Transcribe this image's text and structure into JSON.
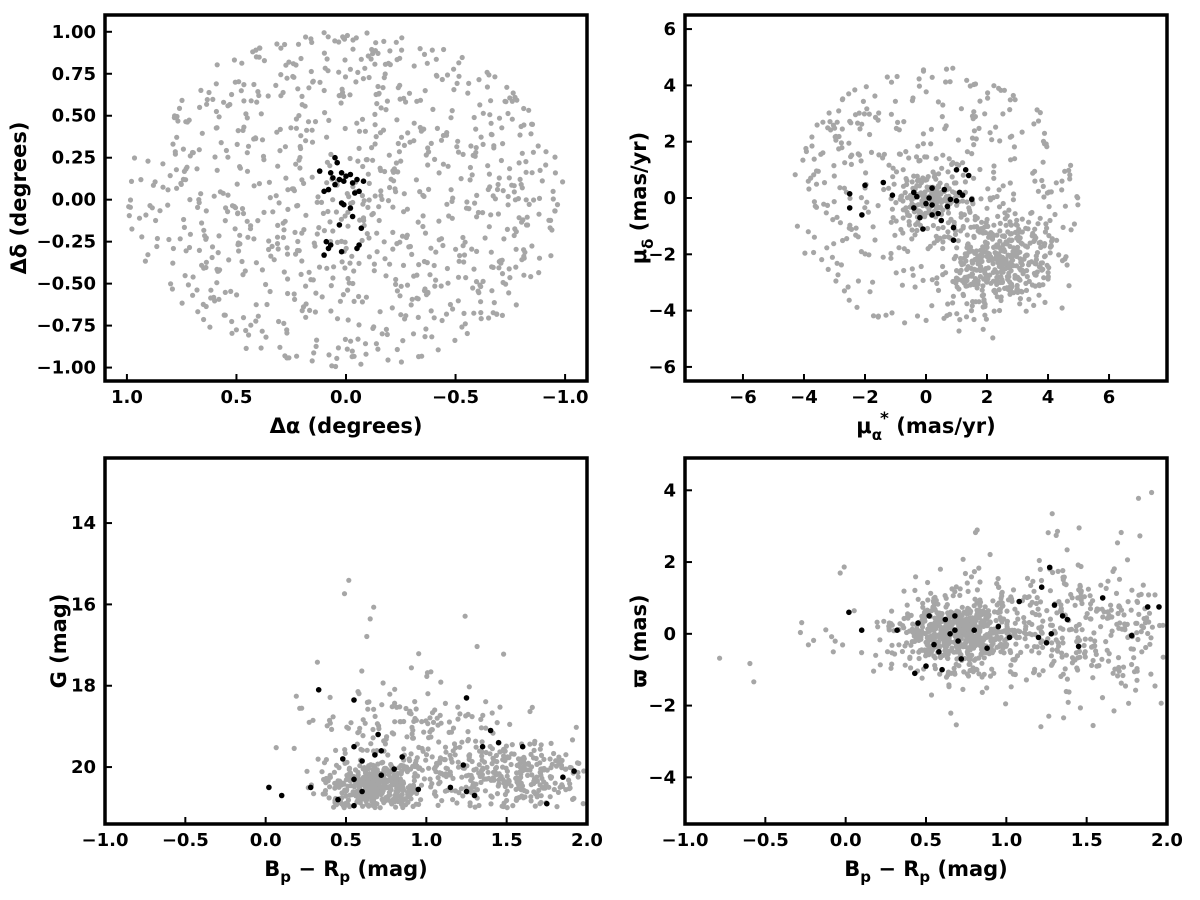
{
  "colors": {
    "background_stars": "#a6a6a6",
    "members": "#000000",
    "frame": "#000000"
  },
  "chart_data": [
    {
      "type": "scatter",
      "id": "sky",
      "xlabel": "Δα (degrees)",
      "ylabel": "Δδ (degrees)",
      "xlim": [
        1.1,
        -1.1
      ],
      "ylim": [
        -1.08,
        1.1
      ],
      "x_inverted": true,
      "xticks": [
        1.0,
        0.5,
        0.0,
        -0.5,
        -1.0
      ],
      "xtick_labels": [
        "1.0",
        "0.5",
        "0.0",
        "−0.5",
        "−1.0"
      ],
      "yticks": [
        1.0,
        0.75,
        0.5,
        0.25,
        0.0,
        -0.25,
        -0.5,
        -0.75,
        -1.0
      ],
      "ytick_labels": [
        "1.00",
        "0.75",
        "0.50",
        "0.25",
        "0.00",
        "−0.25",
        "−0.50",
        "−0.75",
        "−1.00"
      ],
      "grid": false,
      "series": [
        {
          "color": "#a6a6a6",
          "marker": "dot",
          "distribution": {
            "shape": "uniform-disk",
            "center": [
              0,
              0
            ],
            "radius": 1.0,
            "count": 900
          },
          "note": "field stars, uniform within 1 degree radius"
        },
        {
          "color": "#000000",
          "marker": "dot",
          "points": [
            [
              0.05,
              0.25
            ],
            [
              0.04,
              0.22
            ],
            [
              0.02,
              0.16
            ],
            [
              0.0,
              0.14
            ],
            [
              -0.02,
              0.15
            ],
            [
              0.03,
              0.12
            ],
            [
              0.06,
              0.13
            ],
            [
              -0.05,
              0.12
            ],
            [
              -0.03,
              0.1
            ],
            [
              0.01,
              0.11
            ],
            [
              0.07,
              0.16
            ],
            [
              0.1,
              0.05
            ],
            [
              0.08,
              0.06
            ],
            [
              0.05,
              0.09
            ],
            [
              -0.08,
              0.11
            ],
            [
              -0.06,
              0.05
            ],
            [
              -0.04,
              0.04
            ],
            [
              0.12,
              0.17
            ],
            [
              0.01,
              -0.03
            ],
            [
              0.02,
              -0.02
            ],
            [
              -0.02,
              -0.05
            ],
            [
              -0.03,
              -0.1
            ],
            [
              0.03,
              -0.15
            ],
            [
              -0.07,
              -0.17
            ],
            [
              0.07,
              -0.27
            ],
            [
              0.09,
              -0.25
            ],
            [
              0.1,
              -0.33
            ],
            [
              0.02,
              -0.31
            ],
            [
              -0.05,
              -0.29
            ],
            [
              -0.06,
              -0.27
            ],
            [
              0.08,
              -0.29
            ]
          ]
        }
      ]
    },
    {
      "type": "scatter",
      "id": "proper-motion",
      "xlabel_main": "μ",
      "xlabel_sub": "α",
      "xlabel_sup": "*",
      "xlabel_unit": " (mas/yr)",
      "ylabel_main": "μ",
      "ylabel_sub": "δ",
      "ylabel_unit": " (mas/yr)",
      "xlim": [
        -7.9,
        7.9
      ],
      "ylim": [
        -6.5,
        6.5
      ],
      "xticks": [
        -6,
        -4,
        -2,
        0,
        2,
        4,
        6
      ],
      "xtick_labels": [
        "−6",
        "−4",
        "−2",
        "0",
        "2",
        "4",
        "6"
      ],
      "yticks": [
        6,
        4,
        2,
        0,
        -2,
        -4,
        -6
      ],
      "ytick_labels": [
        "6",
        "4",
        "2",
        "0",
        "−2",
        "−4",
        "−6"
      ],
      "grid": false,
      "series": [
        {
          "color": "#a6a6a6",
          "marker": "dot",
          "distribution": {
            "shape": "mixture",
            "components": [
              {
                "type": "uniform-disk",
                "center": [
                  0.3,
                  0.0
                ],
                "radius": 4.7,
                "count": 420
              },
              {
                "type": "gaussian",
                "center": [
                  0.1,
                  -0.1
                ],
                "sigma": [
                  0.55,
                  0.5
                ],
                "count": 160
              },
              {
                "type": "gaussian",
                "center": [
                  2.3,
                  -2.2
                ],
                "sigma": [
                  1.0,
                  0.9
                ],
                "count": 380
              }
            ]
          },
          "note": "field stars"
        },
        {
          "color": "#000000",
          "marker": "dot",
          "points": [
            [
              -2.5,
              0.15
            ],
            [
              -2.5,
              -0.35
            ],
            [
              -2.0,
              0.45
            ],
            [
              -2.1,
              -0.6
            ],
            [
              -1.4,
              0.55
            ],
            [
              -1.1,
              0.1
            ],
            [
              -0.4,
              0.2
            ],
            [
              -0.4,
              -0.35
            ],
            [
              -0.3,
              0.05
            ],
            [
              -0.2,
              -0.7
            ],
            [
              0.0,
              -0.2
            ],
            [
              0.2,
              0.35
            ],
            [
              0.1,
              0.0
            ],
            [
              0.2,
              -0.25
            ],
            [
              0.4,
              -0.55
            ],
            [
              0.5,
              -0.8
            ],
            [
              0.6,
              0.3
            ],
            [
              0.8,
              -0.05
            ],
            [
              0.9,
              -1.05
            ],
            [
              1.0,
              1.0
            ],
            [
              1.0,
              -0.1
            ],
            [
              1.1,
              0.2
            ],
            [
              1.2,
              0.1
            ],
            [
              1.3,
              1.0
            ],
            [
              1.4,
              0.8
            ],
            [
              1.5,
              -0.05
            ],
            [
              0.9,
              -1.5
            ],
            [
              0.2,
              -0.6
            ],
            [
              -0.1,
              -1.1
            ],
            [
              0.7,
              -0.3
            ]
          ]
        }
      ]
    },
    {
      "type": "scatter",
      "id": "cmd",
      "xlabel_main": "B",
      "xlabel_sub1": "p",
      "xlabel_mid": " − R",
      "xlabel_sub2": "p",
      "xlabel_unit": " (mag)",
      "ylabel": "G (mag)",
      "xlim": [
        -1.0,
        2.0
      ],
      "ylim": [
        21.4,
        12.4
      ],
      "y_inverted": true,
      "xticks": [
        -1.0,
        -0.5,
        0.0,
        0.5,
        1.0,
        1.5,
        2.0
      ],
      "xtick_labels": [
        "−1.0",
        "−0.5",
        "0.0",
        "0.5",
        "1.0",
        "1.5",
        "2.0"
      ],
      "yticks": [
        20,
        18,
        16,
        14
      ],
      "ytick_labels": [
        "20",
        "18",
        "16",
        "14"
      ],
      "grid": false,
      "series": [
        {
          "color": "#a6a6a6",
          "marker": "dot",
          "distribution": {
            "shape": "mixture",
            "components": [
              {
                "type": "gaussian",
                "center": [
                  0.7,
                  20.5
                ],
                "sigma": [
                  0.15,
                  0.35
                ],
                "count": 350
              },
              {
                "type": "gaussian",
                "center": [
                  1.5,
                  20.2
                ],
                "sigma": [
                  0.35,
                  0.5
                ],
                "count": 300
              },
              {
                "type": "wedge",
                "center": [
                  0.9,
                  18.5
                ],
                "sigma": [
                  0.35,
                  1.2
                ],
                "count": 220
              }
            ],
            "g_max": 21.0
          },
          "note": "field stars"
        },
        {
          "color": "#000000",
          "marker": "dot",
          "points": [
            [
              0.02,
              20.5
            ],
            [
              0.1,
              20.7
            ],
            [
              0.28,
              20.5
            ],
            [
              0.45,
              20.8
            ],
            [
              0.55,
              20.95
            ],
            [
              0.6,
              20.6
            ],
            [
              0.72,
              20.2
            ],
            [
              0.8,
              20.05
            ],
            [
              0.95,
              20.55
            ],
            [
              1.25,
              20.6
            ],
            [
              1.3,
              20.7
            ],
            [
              1.15,
              20.5
            ],
            [
              0.48,
              19.8
            ],
            [
              0.55,
              20.3
            ],
            [
              0.6,
              19.85
            ],
            [
              0.68,
              19.7
            ],
            [
              0.72,
              19.6
            ],
            [
              0.7,
              19.2
            ],
            [
              0.55,
              19.5
            ],
            [
              0.85,
              19.75
            ],
            [
              1.23,
              19.95
            ],
            [
              1.35,
              19.5
            ],
            [
              1.4,
              19.1
            ],
            [
              1.45,
              19.4
            ],
            [
              1.6,
              19.5
            ],
            [
              1.75,
              20.9
            ],
            [
              1.85,
              20.25
            ],
            [
              1.92,
              20.1
            ],
            [
              1.25,
              18.3
            ],
            [
              0.55,
              18.35
            ],
            [
              0.33,
              18.1
            ]
          ]
        }
      ]
    },
    {
      "type": "scatter",
      "id": "parallax",
      "xlabel_main": "B",
      "xlabel_sub1": "p",
      "xlabel_mid": " − R",
      "xlabel_sub2": "p",
      "xlabel_unit": " (mag)",
      "ylabel": "ϖ (mas)",
      "xlim": [
        -1.0,
        2.0
      ],
      "ylim": [
        -5.3,
        4.9
      ],
      "xticks": [
        -1.0,
        -0.5,
        0.0,
        0.5,
        1.0,
        1.5,
        2.0
      ],
      "xtick_labels": [
        "−1.0",
        "−0.5",
        "0.0",
        "0.5",
        "1.0",
        "1.5",
        "2.0"
      ],
      "yticks": [
        4,
        2,
        0,
        -2,
        -4
      ],
      "ytick_labels": [
        "4",
        "2",
        "0",
        "−2",
        "−4"
      ],
      "grid": false,
      "series": [
        {
          "color": "#a6a6a6",
          "marker": "dot",
          "distribution": {
            "shape": "mixture",
            "components": [
              {
                "type": "gaussian",
                "center": [
                  0.7,
                  0.0
                ],
                "sigma": [
                  0.18,
                  0.45
                ],
                "count": 520
              },
              {
                "type": "gaussian",
                "center": [
                  1.0,
                  0.2
                ],
                "sigma": [
                  0.5,
                  0.9
                ],
                "count": 340
              },
              {
                "type": "gaussian",
                "center": [
                  1.6,
                  0.3
                ],
                "sigma": [
                  0.3,
                  1.2
                ],
                "count": 150
              }
            ]
          },
          "note": "field stars"
        },
        {
          "color": "#000000",
          "marker": "dot",
          "points": [
            [
              0.02,
              0.6
            ],
            [
              0.1,
              0.1
            ],
            [
              0.32,
              0.1
            ],
            [
              0.43,
              -1.1
            ],
            [
              0.45,
              0.3
            ],
            [
              0.5,
              -0.9
            ],
            [
              0.52,
              0.5
            ],
            [
              0.55,
              -0.3
            ],
            [
              0.58,
              -0.5
            ],
            [
              0.6,
              -1.0
            ],
            [
              0.62,
              0.4
            ],
            [
              0.65,
              0.0
            ],
            [
              0.68,
              0.5
            ],
            [
              0.68,
              0.1
            ],
            [
              0.7,
              -0.2
            ],
            [
              0.72,
              -0.7
            ],
            [
              0.8,
              0.1
            ],
            [
              0.88,
              -0.4
            ],
            [
              0.95,
              0.2
            ],
            [
              1.02,
              -0.1
            ],
            [
              1.08,
              0.9
            ],
            [
              1.2,
              -0.1
            ],
            [
              1.22,
              1.3
            ],
            [
              1.28,
              0.0
            ],
            [
              1.3,
              0.8
            ],
            [
              1.35,
              0.5
            ],
            [
              1.45,
              -0.35
            ],
            [
              1.6,
              1.0
            ],
            [
              1.78,
              -0.05
            ],
            [
              1.88,
              0.75
            ],
            [
              1.95,
              0.75
            ],
            [
              1.25,
              -0.25
            ],
            [
              1.38,
              0.4
            ],
            [
              1.27,
              1.85
            ]
          ]
        }
      ]
    }
  ]
}
